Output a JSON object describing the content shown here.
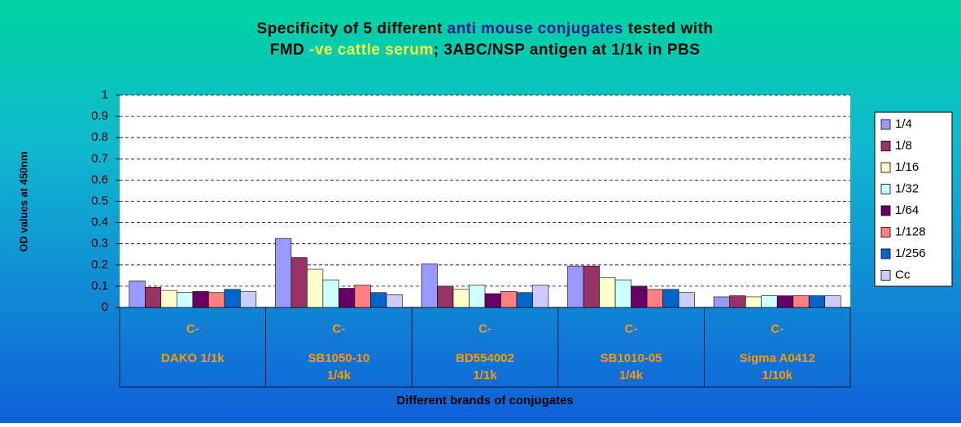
{
  "chart_data": {
    "type": "bar",
    "title": [
      [
        {
          "text": "Specificity of 5 different ",
          "color": "#000000"
        },
        {
          "text": "anti mouse conjugates",
          "color": "#1a1a8c"
        },
        {
          "text": " tested with",
          "color": "#000000"
        }
      ],
      [
        {
          "text": "FMD ",
          "color": "#000000"
        },
        {
          "text": "-ve cattle serum",
          "color": "#ffff33"
        },
        {
          "text": "; 3ABC/NSP antigen at 1/1k in PBS",
          "color": "#000000"
        }
      ]
    ],
    "y_label": "OD values at 450nm",
    "x_label": "Different brands of conjugates",
    "categories": [
      [
        "C-",
        "DAKO 1/1k"
      ],
      [
        "C-",
        "SB1050-10",
        "1/4k"
      ],
      [
        "C-",
        "BD554002",
        "1/1k"
      ],
      [
        "C-",
        "SB1010-05",
        "1/4k"
      ],
      [
        "C-",
        "Sigma A0412",
        "1/10k"
      ]
    ],
    "series": [
      {
        "name": "1/4",
        "color": "#9999ff",
        "values": [
          0.125,
          0.325,
          0.205,
          0.195,
          0.05
        ]
      },
      {
        "name": "1/8",
        "color": "#993366",
        "values": [
          0.095,
          0.235,
          0.1,
          0.195,
          0.055
        ]
      },
      {
        "name": "1/16",
        "color": "#ffffcc",
        "values": [
          0.08,
          0.18,
          0.085,
          0.14,
          0.05
        ]
      },
      {
        "name": "1/32",
        "color": "#ccffff",
        "values": [
          0.07,
          0.13,
          0.105,
          0.13,
          0.055
        ]
      },
      {
        "name": "1/64",
        "color": "#660066",
        "values": [
          0.075,
          0.09,
          0.065,
          0.1,
          0.055
        ]
      },
      {
        "name": "1/128",
        "color": "#ff8080",
        "values": [
          0.07,
          0.105,
          0.075,
          0.085,
          0.055
        ]
      },
      {
        "name": "1/256",
        "color": "#0066cc",
        "values": [
          0.085,
          0.07,
          0.07,
          0.085,
          0.055
        ]
      },
      {
        "name": "Cc",
        "color": "#ccccff",
        "values": [
          0.075,
          0.06,
          0.105,
          0.07,
          0.055
        ]
      }
    ],
    "ylim": [
      0,
      1
    ],
    "yticks": [
      0,
      0.1,
      0.2,
      0.3,
      0.4,
      0.5,
      0.6,
      0.7,
      0.8,
      0.9,
      1
    ],
    "grid": true,
    "legend": "right",
    "category_label_color": "#ff9900"
  }
}
